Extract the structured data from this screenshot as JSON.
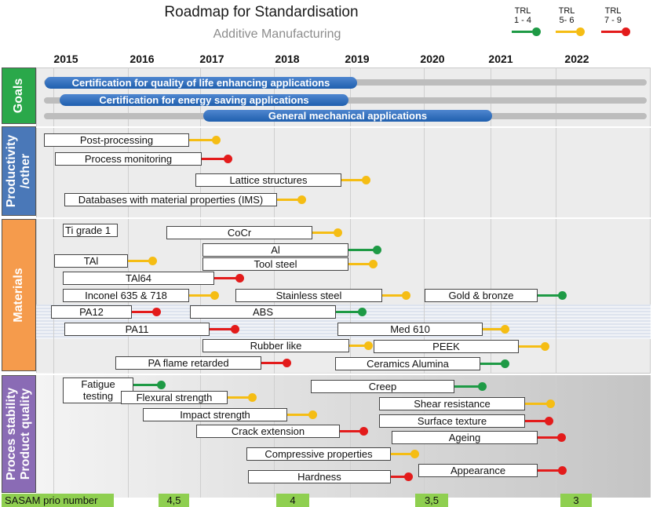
{
  "title": "Roadmap for Standardisation",
  "subtitle": "Additive Manufacturing",
  "legend": [
    {
      "label": "TRL\n1 - 4",
      "color": "#1e9a45"
    },
    {
      "label": "TRL\n5- 6",
      "color": "#f5bd14"
    },
    {
      "label": "TRL\n7 - 9",
      "color": "#e31b1b"
    }
  ],
  "years": [
    "2015",
    "2016",
    "2017",
    "2018",
    "2019",
    "2020",
    "2021",
    "2022"
  ],
  "categories": {
    "goals": "Goals",
    "productivity": "Productivity\n/other",
    "materials": "Materials",
    "quality": "Proces stability\nProduct quality"
  },
  "colors": {
    "goals": "#2aa84a",
    "productivity": "#4a78b8",
    "materials": "#f59b4c",
    "quality": "#8a6bb5"
  },
  "goals": [
    "Certification for quality of life enhancing applications",
    "Certification for energy saving applications",
    "General mechanical applications"
  ],
  "productivity_items": [
    {
      "label": "Post-processing",
      "trl": "yellow"
    },
    {
      "label": "Process monitoring",
      "trl": "red"
    },
    {
      "label": "Lattice structures",
      "trl": "yellow"
    },
    {
      "label": "Databases with material properties (IMS)",
      "trl": "yellow"
    }
  ],
  "materials_items": [
    {
      "label": "Ti grade 1",
      "trl": ""
    },
    {
      "label": "CoCr",
      "trl": "yellow"
    },
    {
      "label": "Al",
      "trl": "green"
    },
    {
      "label": "TAl",
      "trl": "yellow"
    },
    {
      "label": "Tool steel",
      "trl": "yellow"
    },
    {
      "label": "TAl64",
      "trl": "red"
    },
    {
      "label": "Inconel 635 & 718",
      "trl": "yellow"
    },
    {
      "label": "Stainless steel",
      "trl": "yellow"
    },
    {
      "label": "Gold & bronze",
      "trl": "green"
    },
    {
      "label": "PA12",
      "trl": "red"
    },
    {
      "label": "ABS",
      "trl": "green"
    },
    {
      "label": "PA11",
      "trl": "red"
    },
    {
      "label": "Med 610",
      "trl": "yellow"
    },
    {
      "label": "Rubber like",
      "trl": "yellow"
    },
    {
      "label": "PEEK",
      "trl": "yellow"
    },
    {
      "label": "PA flame retarded",
      "trl": "red"
    },
    {
      "label": "Ceramics Alumina",
      "trl": "green"
    }
  ],
  "quality_items": [
    {
      "label": "Fatigue\ntesting",
      "trl": "green"
    },
    {
      "label": "Flexural strength",
      "trl": "yellow"
    },
    {
      "label": "Creep",
      "trl": "green"
    },
    {
      "label": "Shear resistance",
      "trl": "yellow"
    },
    {
      "label": "Impact strength",
      "trl": "yellow"
    },
    {
      "label": "Surface texture",
      "trl": "red"
    },
    {
      "label": "Crack extension",
      "trl": "red"
    },
    {
      "label": "Ageing",
      "trl": "red"
    },
    {
      "label": "Compressive properties",
      "trl": "yellow"
    },
    {
      "label": "Appearance",
      "trl": "red"
    },
    {
      "label": "Hardness",
      "trl": "red"
    }
  ],
  "prio": {
    "label": "SASAM prio number",
    "values": [
      "4,5",
      "4",
      "3,5",
      "3"
    ]
  }
}
